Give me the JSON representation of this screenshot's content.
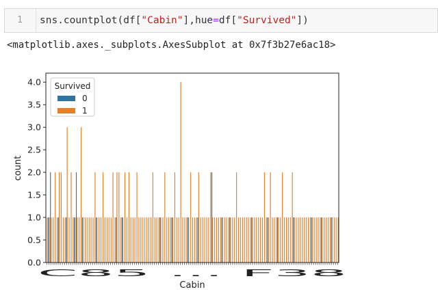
{
  "cell": {
    "line_number": "1",
    "code_tokens": [
      {
        "text": "sns.countplot(df[",
        "kind": "plain"
      },
      {
        "text": "\"Cabin\"",
        "kind": "str"
      },
      {
        "text": "],hue",
        "kind": "plain"
      },
      {
        "text": "=",
        "kind": "kw"
      },
      {
        "text": "df[",
        "kind": "plain"
      },
      {
        "text": "\"Survived\"",
        "kind": "str"
      },
      {
        "text": "])",
        "kind": "plain"
      }
    ]
  },
  "output": {
    "repr_text": "<matplotlib.axes._subplots.AxesSubplot at 0x7f3b27e6ac18>"
  },
  "colors": {
    "series_0": "#3274a1",
    "series_1": "#e1812c"
  },
  "chart_data": {
    "type": "bar",
    "xlabel": "Cabin",
    "ylabel": "count",
    "ylim": [
      0,
      4.2
    ],
    "yticks": [
      "0.0",
      "0.5",
      "1.0",
      "1.5",
      "2.0",
      "2.5",
      "3.0",
      "3.5",
      "4.0"
    ],
    "x_tick_label_visible": "C85 ... F38",
    "legend_title": "Survived",
    "legend_placement": "top-left",
    "category_count": 147,
    "series": [
      {
        "name": "0",
        "values": [
          0,
          1,
          2,
          0,
          0,
          0,
          1,
          0,
          0,
          0,
          1,
          0,
          0,
          0,
          1,
          2,
          0,
          0,
          1,
          0,
          0,
          0,
          0,
          0,
          0,
          1,
          0,
          0,
          0,
          0,
          0,
          0,
          0,
          0,
          0,
          1,
          0,
          0,
          1,
          0,
          0,
          0,
          0,
          0,
          0,
          0,
          0,
          0,
          0,
          0,
          0,
          0,
          0,
          0,
          0,
          0,
          0,
          1,
          0,
          0,
          0,
          0,
          0,
          1,
          0,
          0,
          0,
          0,
          0,
          0,
          0,
          1,
          0,
          0,
          0,
          0,
          1,
          0,
          0,
          0,
          0,
          0,
          0,
          2,
          0,
          0,
          0,
          0,
          1,
          0,
          0,
          0,
          1,
          0,
          0,
          0,
          0,
          0,
          0,
          0,
          0,
          0,
          0,
          1,
          0,
          0,
          0,
          0,
          0,
          0,
          0,
          1,
          0,
          0,
          0,
          0,
          1,
          0,
          0,
          0,
          0,
          0,
          0,
          0,
          1,
          0,
          0,
          0,
          0,
          0,
          0,
          0,
          0,
          1,
          0,
          0,
          0,
          0,
          1,
          0,
          0,
          0,
          0,
          1,
          0,
          0
        ]
      },
      {
        "name": "1",
        "values": [
          1,
          1,
          1,
          1,
          2,
          1,
          2,
          2,
          1,
          1,
          3,
          1,
          2,
          1,
          1,
          1,
          1,
          3,
          1,
          1,
          1,
          1,
          1,
          1,
          2,
          1,
          1,
          1,
          2,
          1,
          1,
          1,
          1,
          2,
          1,
          2,
          2,
          1,
          1,
          2,
          1,
          2,
          1,
          1,
          1,
          2,
          1,
          1,
          1,
          1,
          1,
          1,
          1,
          2,
          1,
          1,
          1,
          1,
          1,
          2,
          1,
          1,
          1,
          1,
          2,
          1,
          1,
          4,
          1,
          1,
          1,
          1,
          2,
          1,
          1,
          1,
          2,
          1,
          1,
          1,
          1,
          1,
          2,
          1,
          1,
          1,
          1,
          1,
          1,
          1,
          1,
          1,
          1,
          1,
          1,
          2,
          1,
          1,
          1,
          1,
          1,
          1,
          1,
          1,
          1,
          1,
          1,
          1,
          1,
          2,
          1,
          1,
          2,
          1,
          1,
          1,
          1,
          1,
          2,
          1,
          1,
          1,
          1,
          2,
          1,
          1,
          1,
          1,
          1,
          1,
          1,
          1,
          1,
          1,
          1,
          1,
          1,
          1,
          1,
          1,
          1,
          1,
          1,
          1,
          1,
          1,
          1
        ]
      }
    ]
  }
}
